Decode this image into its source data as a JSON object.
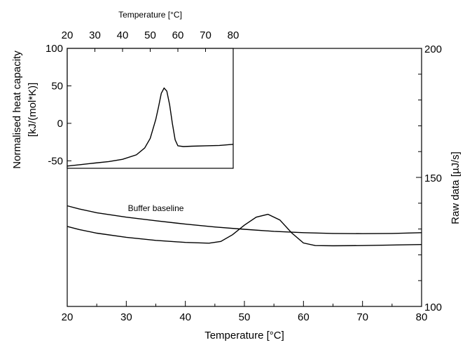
{
  "chart_data": [
    {
      "type": "line",
      "role": "main",
      "xlabel": "Temperature [°C]",
      "ylabel": "Raw data [µJ/s]",
      "xlim": [
        20,
        80
      ],
      "ylim": [
        100,
        200
      ],
      "x_ticks": [
        20,
        30,
        40,
        50,
        60,
        70,
        80
      ],
      "y_ticks": [
        100,
        150,
        200
      ],
      "grid": false,
      "annotations": [
        {
          "text": "Buffer baseline",
          "x": 35,
          "y": 137
        }
      ],
      "series": [
        {
          "x": [
            20,
            22,
            25,
            30,
            35,
            40,
            45,
            50,
            55,
            60,
            65,
            70,
            75,
            80
          ],
          "y": [
            139,
            137.8,
            136.3,
            134.6,
            133.2,
            131.9,
            130.8,
            129.9,
            129.1,
            128.6,
            128.3,
            128.2,
            128.3,
            128.6
          ]
        },
        {
          "x": [
            20,
            22,
            25,
            30,
            35,
            40,
            44,
            46,
            48,
            50,
            52,
            54,
            56,
            58,
            60,
            62,
            65,
            70,
            75,
            80
          ],
          "y": [
            131,
            129.8,
            128.4,
            126.8,
            125.6,
            124.8,
            124.5,
            125.2,
            127.8,
            131.5,
            134.6,
            135.7,
            133.5,
            128.5,
            124.6,
            123.6,
            123.5,
            123.6,
            123.8,
            124
          ]
        }
      ]
    },
    {
      "type": "line",
      "role": "inset",
      "xlabel": "Temperature [°C]",
      "ylabel": "Normalised heat capacity [kJ/(mol*K)]",
      "ylabel_lines": [
        "Normalised heat capacity",
        "[kJ/(mol*K)]"
      ],
      "xlim": [
        20,
        80
      ],
      "ylim": [
        -60,
        100
      ],
      "x_ticks": [
        20,
        30,
        40,
        50,
        60,
        70,
        80
      ],
      "y_ticks": [
        -50,
        0,
        50,
        100
      ],
      "grid": false,
      "series": [
        {
          "x": [
            20,
            25,
            30,
            35,
            40,
            45,
            48,
            50,
            52,
            53,
            54,
            55,
            56,
            57,
            58,
            59,
            60,
            62,
            65,
            70,
            75,
            80
          ],
          "y": [
            -57,
            -55,
            -53,
            -51,
            -48,
            -42,
            -33,
            -20,
            5,
            22,
            40,
            47,
            43,
            25,
            0,
            -22,
            -30,
            -31,
            -30.5,
            -30,
            -29.5,
            -28
          ]
        }
      ]
    }
  ]
}
